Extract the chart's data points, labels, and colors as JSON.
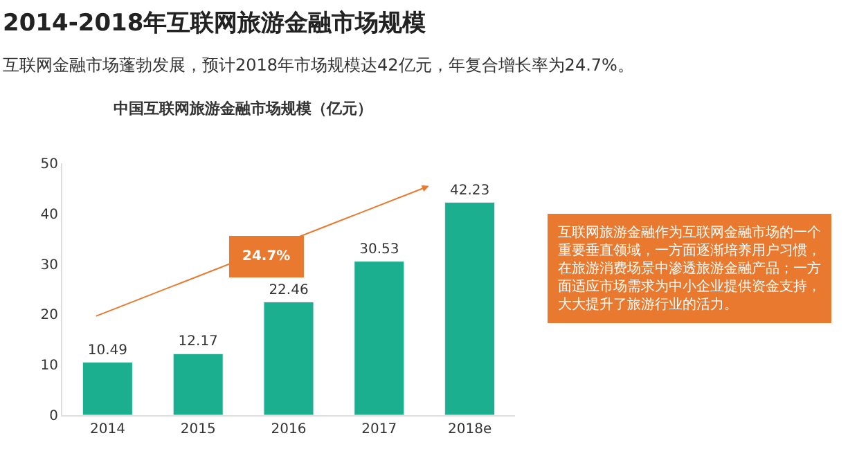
{
  "chart_data": {
    "type": "bar",
    "title": "2014-2018年互联网旅游金融市场规模",
    "subtitle": "互联网金融市场蓬勃发展，预计2018年市场规模达42亿元，年复合增长率为24.7%。",
    "xlabel": "中国互联网旅游金融市场规模（亿元）",
    "categories": [
      "2014",
      "2015",
      "2016",
      "2017",
      "2018e"
    ],
    "values": [
      10.49,
      12.17,
      22.46,
      30.53,
      42.23
    ],
    "color": "#1bae8f",
    "ylim": [
      0,
      50
    ],
    "yticks": [
      0,
      10,
      20,
      30,
      40,
      50
    ],
    "data_labels": true,
    "annotations": [
      "24.7%",
      "互联网旅游金融作为互联网金融市场的一个重要垂直领域，一方面逐渐培养用户习惯，在旅游消费场景中渗透旅游金融产品；一方面适应市场需求为中小企业提供资金支持，大大提升了旅游行业的活力。"
    ]
  }
}
